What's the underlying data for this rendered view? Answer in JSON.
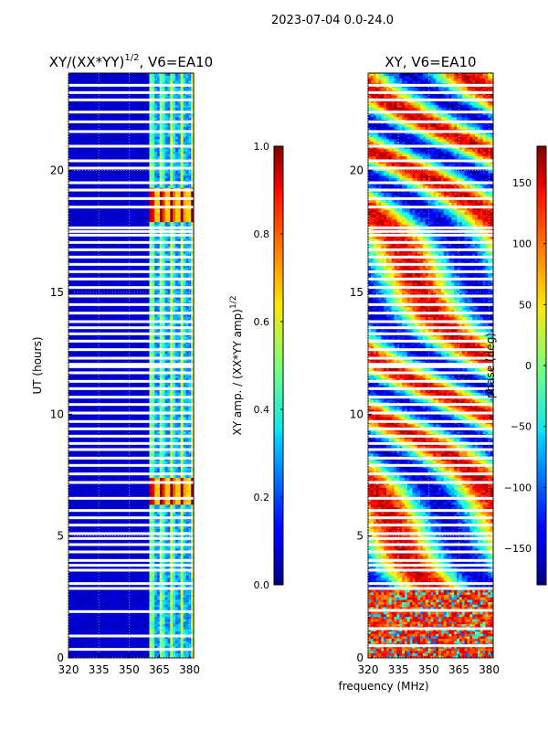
{
  "figure": {
    "suptitle": "2023-07-04 0.0-24.0",
    "shared_xlabel": "frequency (MHz)"
  },
  "chart_data": [
    {
      "type": "heatmap",
      "title_main": "XY/(XX*YY)",
      "title_exp": "1/2",
      "title_rest": ", V6=EA10",
      "xlabel": "",
      "ylabel": "UT (hours)",
      "xlim": [
        320,
        382
      ],
      "ylim": [
        0,
        24
      ],
      "x_ticks": [
        320,
        335,
        350,
        365,
        380
      ],
      "y_ticks": [
        0,
        5,
        10,
        15,
        20
      ],
      "colorbar": {
        "label_main": "XY amp. / (XX*YY amp)",
        "label_exp": "1/2",
        "range": [
          0.0,
          1.0
        ],
        "ticks": [
          0.0,
          0.2,
          0.4,
          0.6,
          0.8,
          1.0
        ],
        "tick_labels": [
          "0.0",
          "0.2",
          "0.4",
          "0.6",
          "0.8",
          "1.0"
        ],
        "colormap": "jet"
      },
      "active_band_mhz": [
        360,
        382
      ],
      "strong_hours": [
        [
          6.3,
          7.4
        ],
        [
          17.9,
          19.3
        ]
      ],
      "flagged_hours": [
        0.35,
        0.9,
        1.9,
        2.85,
        3.05,
        3.6,
        3.8,
        4.0,
        4.35,
        4.65,
        4.9,
        5.1,
        5.45,
        5.75,
        6.05,
        6.55,
        7.2,
        7.55,
        7.9,
        8.2,
        8.55,
        8.8,
        9.1,
        9.4,
        9.7,
        10.05,
        10.4,
        10.7,
        11.05,
        11.35,
        11.7,
        11.95,
        12.05,
        12.3,
        12.65,
        13.0,
        13.3,
        13.55,
        13.8,
        14.15,
        14.5,
        14.85,
        15.2,
        15.55,
        15.85,
        16.15,
        16.45,
        16.75,
        17.05,
        17.35,
        17.5,
        17.65,
        18.5,
        18.85,
        19.2,
        19.5,
        20.1,
        20.4,
        21.0,
        21.6,
        22.0,
        22.4,
        22.9,
        23.2,
        23.5
      ]
    },
    {
      "type": "heatmap",
      "title_main": "XY, V6=EA10",
      "xlabel": "frequency (MHz)",
      "ylabel": "",
      "xlim": [
        320,
        382
      ],
      "ylim": [
        0,
        24
      ],
      "x_ticks": [
        320,
        335,
        350,
        365,
        380
      ],
      "y_ticks": [
        0,
        5,
        10,
        15,
        20
      ],
      "colorbar": {
        "label": "phase (deg)",
        "range": [
          -180,
          180
        ],
        "ticks": [
          -150,
          -100,
          -50,
          0,
          50,
          100,
          150
        ],
        "tick_labels": [
          "−150",
          "−100",
          "−50",
          "0",
          "50",
          "100",
          "150"
        ],
        "colormap": "jet"
      },
      "low_block_hours": [
        0,
        2.8
      ],
      "flagged_hours": [
        0.5,
        1.2,
        1.95,
        2.85,
        3.05,
        3.6,
        3.8,
        4.0,
        4.35,
        4.65,
        4.9,
        5.1,
        5.45,
        5.75,
        6.05,
        6.55,
        7.2,
        7.55,
        7.9,
        8.2,
        8.55,
        8.8,
        9.1,
        9.4,
        9.7,
        10.05,
        10.4,
        10.7,
        11.05,
        11.35,
        11.7,
        11.95,
        12.05,
        12.3,
        12.65,
        13.0,
        13.3,
        13.55,
        13.8,
        14.15,
        14.5,
        14.85,
        15.2,
        15.55,
        15.85,
        16.15,
        16.45,
        16.75,
        17.05,
        17.35,
        17.5,
        17.65,
        18.5,
        18.85,
        19.2,
        19.5,
        20.1,
        20.4,
        21.0,
        21.6,
        22.0,
        22.4,
        22.9,
        23.2,
        23.5
      ]
    }
  ]
}
